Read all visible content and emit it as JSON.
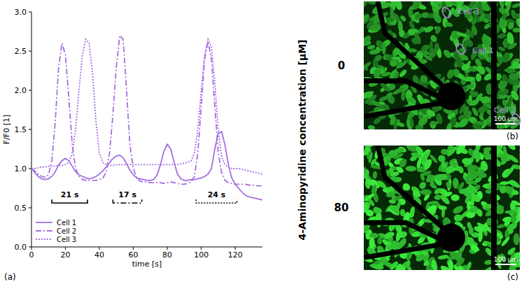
{
  "chart_data": {
    "type": "line",
    "panel_label": "(a)",
    "x_label": "time [s]",
    "y_label": "F/F0 [1]",
    "xlim": [
      0,
      136
    ],
    "ylim": [
      0,
      3.0
    ],
    "xticks": [
      0,
      20,
      40,
      60,
      80,
      100,
      120
    ],
    "yticks": [
      {
        "value": 0,
        "label": "0.0"
      },
      {
        "value": 0.5,
        "label": "0.5"
      },
      {
        "value": 1,
        "label": "1.0"
      },
      {
        "value": 1.5,
        "label": "1.5"
      },
      {
        "value": 2,
        "label": "2.0"
      },
      {
        "value": 2.5,
        "label": "2.5"
      },
      {
        "value": 3,
        "label": "3.0"
      }
    ],
    "legend": "lower left",
    "grid": false,
    "x": [
      0,
      2,
      4,
      6,
      8,
      10,
      12,
      14,
      16,
      18,
      20,
      22,
      24,
      26,
      28,
      30,
      32,
      34,
      36,
      38,
      40,
      42,
      44,
      46,
      48,
      50,
      52,
      54,
      56,
      58,
      60,
      62,
      64,
      66,
      68,
      70,
      72,
      74,
      76,
      78,
      80,
      82,
      84,
      86,
      88,
      90,
      92,
      94,
      96,
      98,
      100,
      102,
      104,
      106,
      108,
      110,
      112,
      114,
      116,
      118,
      120,
      122,
      124,
      126,
      128,
      130,
      132,
      134,
      136
    ],
    "series": [
      {
        "name": "Cell 1",
        "color": "#a56de2",
        "line_style": "solid",
        "values": [
          1.0,
          0.95,
          0.9,
          0.87,
          0.86,
          0.87,
          0.9,
          0.96,
          1.05,
          1.1,
          1.13,
          1.1,
          1.03,
          0.96,
          0.92,
          0.9,
          0.88,
          0.87,
          0.88,
          0.9,
          0.93,
          0.97,
          1.02,
          1.08,
          1.13,
          1.16,
          1.17,
          1.14,
          1.06,
          0.98,
          0.92,
          0.88,
          0.87,
          0.86,
          0.85,
          0.85,
          0.86,
          0.92,
          1.05,
          1.22,
          1.31,
          1.25,
          1.08,
          0.93,
          0.87,
          0.85,
          0.85,
          0.86,
          0.86,
          0.87,
          0.88,
          0.9,
          0.93,
          1.0,
          1.25,
          1.45,
          1.47,
          1.3,
          1.05,
          0.88,
          0.8,
          0.75,
          0.7,
          0.66,
          0.64,
          0.63,
          0.62,
          0.61,
          0.6
        ]
      },
      {
        "name": "Cell 2",
        "color": "#a56de2",
        "line_style": "dashdot",
        "values": [
          1.0,
          0.97,
          0.93,
          0.9,
          0.89,
          0.92,
          1.1,
          1.6,
          2.3,
          2.6,
          2.45,
          1.9,
          1.3,
          1.0,
          0.9,
          0.86,
          0.85,
          0.85,
          0.85,
          0.85,
          0.86,
          0.88,
          0.95,
          1.2,
          1.7,
          2.3,
          2.7,
          2.65,
          2.0,
          1.3,
          1.0,
          0.88,
          0.84,
          0.83,
          0.83,
          0.82,
          0.82,
          0.82,
          0.82,
          0.81,
          0.82,
          0.83,
          0.82,
          0.81,
          0.8,
          0.8,
          0.81,
          0.83,
          0.9,
          1.2,
          1.8,
          2.4,
          2.62,
          2.4,
          1.8,
          1.2,
          0.95,
          0.85,
          0.82,
          0.81,
          0.8,
          0.8,
          0.8,
          0.8,
          0.79,
          0.79,
          0.78,
          0.78,
          0.78
        ]
      },
      {
        "name": "Cell 3",
        "color": "#a56de2",
        "line_style": "dotted",
        "values": [
          1.0,
          1.0,
          1.01,
          1.02,
          1.02,
          1.03,
          1.03,
          1.03,
          1.04,
          1.04,
          1.05,
          1.08,
          1.2,
          1.5,
          2.0,
          2.45,
          2.65,
          2.6,
          2.2,
          1.6,
          1.2,
          1.08,
          1.05,
          1.04,
          1.04,
          1.05,
          1.05,
          1.05,
          1.05,
          1.05,
          1.05,
          1.05,
          1.05,
          1.05,
          1.05,
          1.05,
          1.05,
          1.05,
          1.05,
          1.05,
          1.05,
          1.05,
          1.05,
          1.05,
          1.06,
          1.07,
          1.08,
          1.1,
          1.2,
          1.5,
          2.0,
          2.45,
          2.65,
          2.55,
          2.1,
          1.5,
          1.15,
          1.05,
          1.02,
          1.0,
          1.0,
          1.0,
          0.99,
          0.98,
          0.97,
          0.96,
          0.95,
          0.94,
          0.93
        ]
      }
    ],
    "annotations": [
      {
        "text": "21 s",
        "x": [
          12,
          33
        ],
        "y": 0.56,
        "line_style": "solid"
      },
      {
        "text": "17 s",
        "x": [
          48,
          65
        ],
        "y": 0.56,
        "line_style": "dashdot"
      },
      {
        "text": "24 s",
        "x": [
          97,
          121
        ],
        "y": 0.56,
        "line_style": "dotted"
      }
    ]
  },
  "row_title": "4-Aminopyridine concentration [µM]",
  "images": [
    {
      "label": "(b)",
      "concentration": 0,
      "cells": [
        "Cell 3",
        "Cell 1",
        "Cell 2"
      ],
      "scale_bar": "100 µm"
    },
    {
      "label": "(c)",
      "concentration": 80,
      "scale_bar": "100 µm"
    }
  ]
}
